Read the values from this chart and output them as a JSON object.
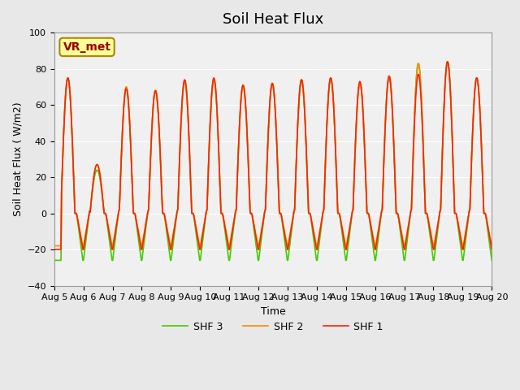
{
  "title": "Soil Heat Flux",
  "xlabel": "Time",
  "ylabel": "Soil Heat Flux ( W/m2)",
  "ylim": [
    -40,
    100
  ],
  "yticks": [
    -40,
    -20,
    0,
    20,
    40,
    60,
    80,
    100
  ],
  "background_color": "#e8e8e8",
  "plot_bg_color": "#f0f0f0",
  "line_colors": [
    "#ff2200",
    "#ff8800",
    "#44cc00"
  ],
  "line_labels": [
    "SHF 1",
    "SHF 2",
    "SHF 3"
  ],
  "vr_met_label": "VR_met",
  "n_days": 15,
  "points_per_day": 48,
  "start_day": 5,
  "peaks1": [
    75,
    27,
    69,
    68,
    74,
    75,
    71,
    72,
    74,
    75,
    73,
    76,
    77,
    84,
    75
  ],
  "peaks2": [
    75,
    27,
    70,
    68,
    73,
    74,
    70,
    72,
    74,
    75,
    72,
    76,
    83,
    84,
    75
  ],
  "peaks3": [
    75,
    24,
    70,
    68,
    73,
    74,
    71,
    72,
    74,
    75,
    72,
    75,
    83,
    84,
    75
  ],
  "min_night1": -20,
  "min_night2": -18,
  "min_night3": -26,
  "title_fontsize": 13,
  "axis_fontsize": 9,
  "tick_fontsize": 8,
  "legend_fontsize": 9
}
